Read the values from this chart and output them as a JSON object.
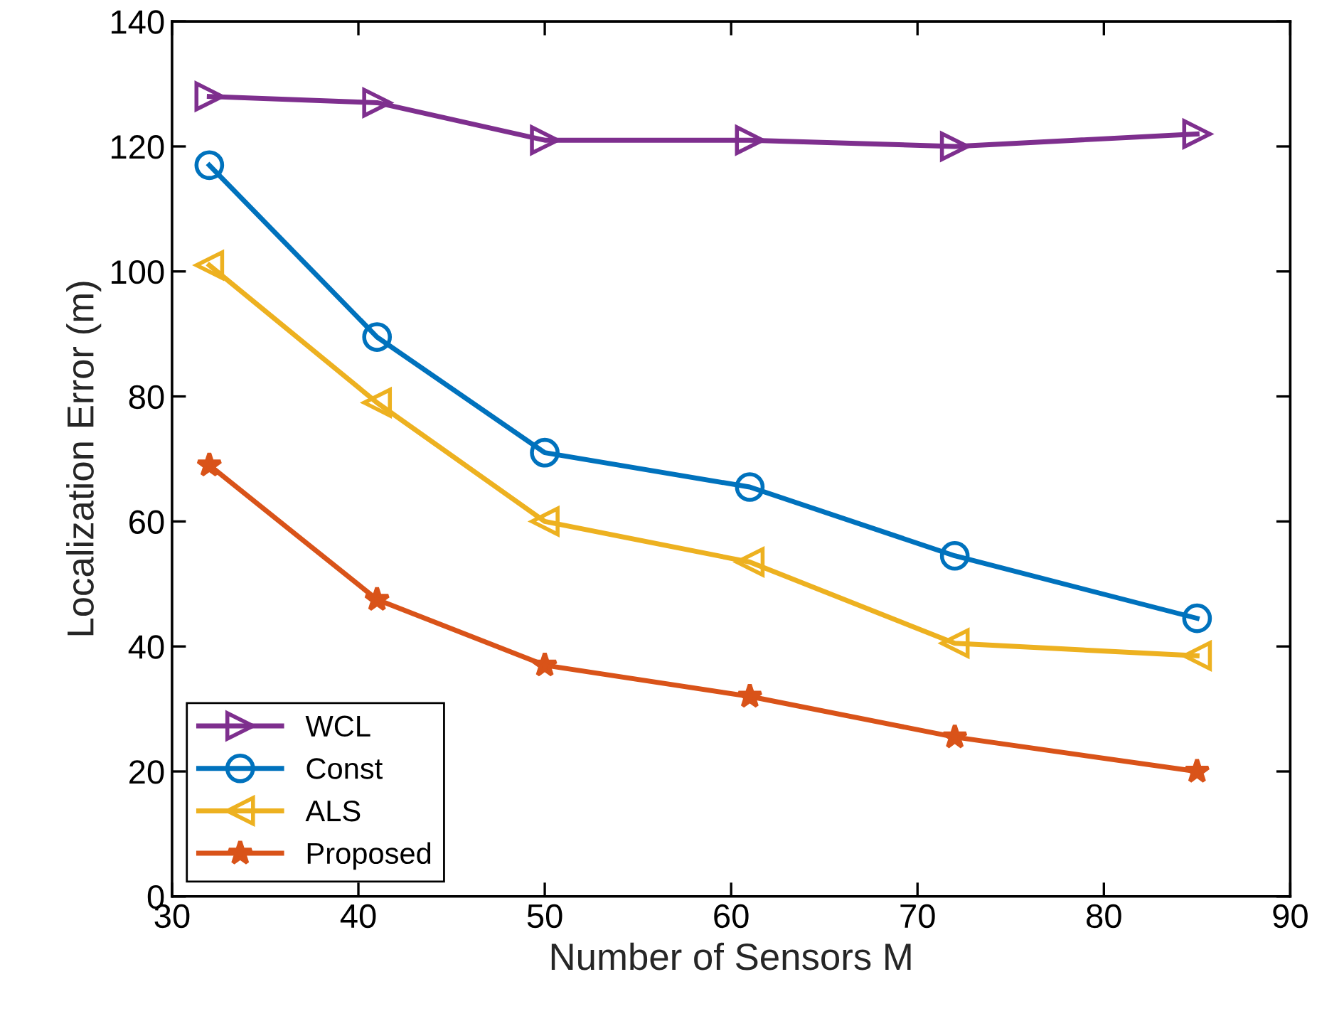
{
  "chart_data": {
    "type": "line",
    "xlabel": "Number of Sensors M",
    "ylabel": "Localization Error (m)",
    "x": [
      32,
      41,
      50,
      61,
      72,
      85
    ],
    "series": [
      {
        "name": "WCL",
        "color": "#7e2f8e",
        "marker": "triangle-right",
        "values": [
          128,
          127,
          121,
          121,
          120,
          122
        ]
      },
      {
        "name": "Const",
        "color": "#0072bd",
        "marker": "circle",
        "values": [
          117,
          89.5,
          71,
          65.5,
          54.5,
          44.5
        ]
      },
      {
        "name": "ALS",
        "color": "#edb120",
        "marker": "triangle-left",
        "values": [
          101,
          79,
          60,
          53.5,
          40.5,
          38.5
        ]
      },
      {
        "name": "Proposed",
        "color": "#d95319",
        "marker": "star",
        "values": [
          69,
          47.5,
          37,
          32,
          25.5,
          20
        ]
      }
    ],
    "xlim": [
      30,
      90
    ],
    "xticks": [
      30,
      40,
      50,
      60,
      70,
      80,
      90
    ],
    "ylim": [
      0,
      140
    ],
    "yticks": [
      0,
      20,
      40,
      60,
      80,
      100,
      120,
      140
    ],
    "grid": false,
    "legend": "bottom left",
    "line_style": "solid"
  }
}
